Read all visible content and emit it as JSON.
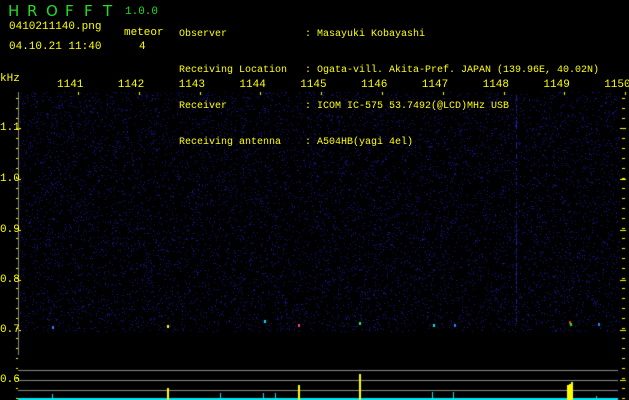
{
  "app": {
    "title_letters": [
      "H",
      "R",
      "O",
      "F",
      "F",
      "T"
    ],
    "version": "1.0.0"
  },
  "file": {
    "name": "0410211140.png",
    "datetime": "04.10.21 11:40"
  },
  "meteor": {
    "label": "meteor",
    "count": "4"
  },
  "info": [
    {
      "label": "Observer",
      "value": ": Masayuki Kobayashi"
    },
    {
      "label": "Receiving Location",
      "value": ": Ogata-vill. Akita-Pref. JAPAN (139.96E, 40.02N)"
    },
    {
      "label": "Receiver",
      "value": ": ICOM IC-575 53.7492(@LCD)MHz USB"
    },
    {
      "label": "Receiving antenna",
      "value": ": A504HB(yagi 4el)"
    }
  ],
  "axis": {
    "y_unit": "kHz",
    "y_ticks": [
      "1.1",
      "1.0",
      "0.9",
      "0.8",
      "0.7",
      "0.6"
    ],
    "x_ticks": [
      "1141",
      "1142",
      "1143",
      "1144",
      "1145",
      "1146",
      "1147",
      "1148",
      "1149",
      "1150"
    ]
  },
  "colors": {
    "text": "#ffff00",
    "title": "#22dd22",
    "histogram": "#00e5ee",
    "meteor_bar": "#ffff00",
    "grid": "#888888"
  }
}
